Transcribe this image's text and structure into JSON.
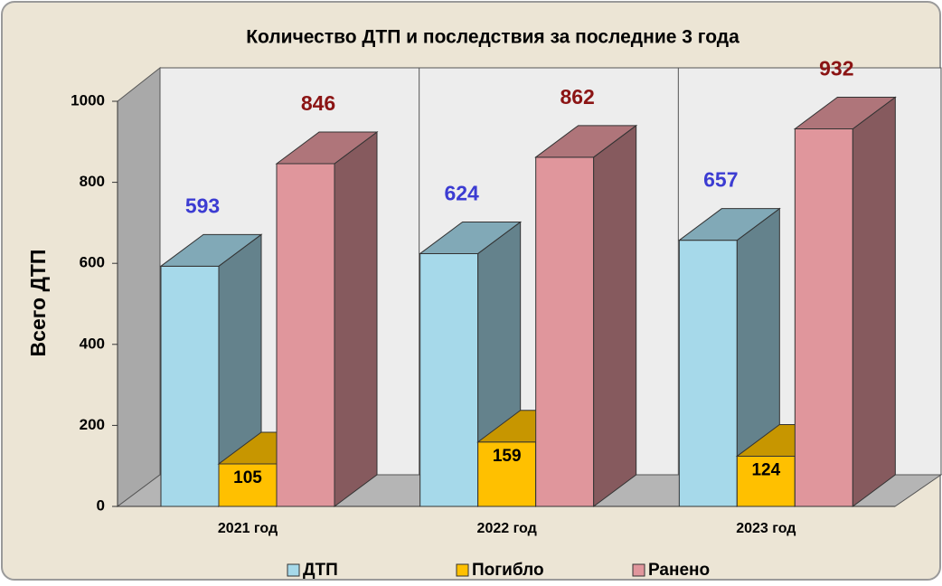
{
  "chart_data": {
    "type": "bar3d",
    "title": "Количество ДТП и последствия за последние 3 года",
    "y_label": "Всего ДТП",
    "categories": [
      "2021 год",
      "2022 год",
      "2023 год"
    ],
    "series": [
      {
        "name": "ДТП",
        "color": "#a6d9ea",
        "label_color": "#3c3cd2",
        "values": [
          593,
          624,
          657
        ]
      },
      {
        "name": "Погибло",
        "color": "#ffc000",
        "label_color": "#000000",
        "values": [
          105,
          159,
          124
        ]
      },
      {
        "name": "Ранено",
        "color": "#e0969c",
        "label_color": "#8b1414",
        "values": [
          846,
          862,
          932
        ]
      }
    ],
    "ylim": [
      0,
      1000
    ],
    "yticks": [
      0,
      200,
      400,
      600,
      800,
      1000
    ],
    "grid": false
  }
}
